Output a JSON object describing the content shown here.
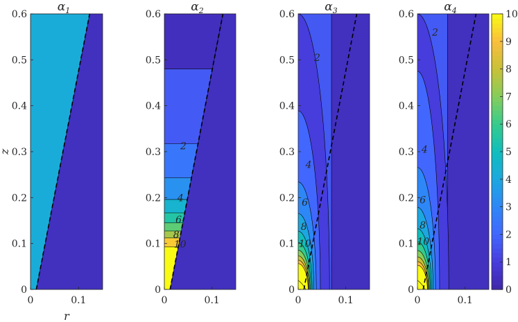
{
  "chart_data": {
    "type": "heatmap",
    "colormap": "parula",
    "panels": [
      {
        "title": "α₁",
        "title_base": "α",
        "title_sub": "1",
        "xlim": [
          0,
          0.15
        ],
        "ylim": [
          0,
          0.6
        ],
        "xticks": [
          "0",
          "0.1"
        ],
        "yticks": [
          "0",
          "0.1",
          "0.2",
          "0.3",
          "0.4",
          "0.5",
          "0.6"
        ],
        "xlabel": "r",
        "ylabel": "z",
        "interface": [
          [
            0.012,
            0
          ],
          [
            0.123,
            0.6
          ]
        ],
        "regions": [
          {
            "side": "left",
            "value": 4
          },
          {
            "side": "right",
            "value": 0
          }
        ],
        "contour_labels": []
      },
      {
        "title": "α₂",
        "title_base": "α",
        "title_sub": "2",
        "xlim": [
          0,
          0.15
        ],
        "ylim": [
          0,
          0.6
        ],
        "xticks": [
          "0",
          "0.1"
        ],
        "yticks": [
          "0",
          "0.1",
          "0.2",
          "0.3",
          "0.4",
          "0.5",
          "0.6"
        ],
        "interface": [
          [
            0.012,
            0
          ],
          [
            0.123,
            0.6
          ]
        ],
        "bands": [
          {
            "z0": 0,
            "z1": 0.093,
            "value": 10
          },
          {
            "z0": 0.093,
            "z1": 0.112,
            "value": 9.2
          },
          {
            "z0": 0.112,
            "z1": 0.127,
            "value": 7.5
          },
          {
            "z0": 0.127,
            "z1": 0.145,
            "value": 6.5
          },
          {
            "z0": 0.145,
            "z1": 0.167,
            "value": 5.5
          },
          {
            "z0": 0.167,
            "z1": 0.196,
            "value": 4.5
          },
          {
            "z0": 0.196,
            "z1": 0.243,
            "value": 3.3
          },
          {
            "z0": 0.243,
            "z1": 0.317,
            "value": 2.5
          },
          {
            "z0": 0.317,
            "z1": 0.48,
            "value": 1.7
          },
          {
            "z0": 0.48,
            "z1": 0.6,
            "value": 0.4
          }
        ],
        "contour_labels": [
          {
            "text": "2",
            "r": 0.04,
            "z": 0.313
          },
          {
            "text": "4",
            "r": 0.034,
            "z": 0.2
          },
          {
            "text": "6",
            "r": 0.03,
            "z": 0.152
          },
          {
            "text": "8",
            "r": 0.025,
            "z": 0.12
          },
          {
            "text": "10",
            "r": 0.033,
            "z": 0.099
          }
        ]
      },
      {
        "title": "α₃",
        "title_base": "α",
        "title_sub": "3",
        "xlim": [
          0,
          0.15
        ],
        "ylim": [
          0,
          0.6
        ],
        "xticks": [
          "0",
          "0.1"
        ],
        "yticks": [
          "0",
          "0.1",
          "0.2",
          "0.3",
          "0.4",
          "0.5",
          "0.6"
        ],
        "interface": [
          [
            0.012,
            0
          ],
          [
            0.123,
            0.6
          ]
        ],
        "contour_levels": [
          1,
          2,
          3,
          4,
          5,
          6,
          7,
          8,
          9,
          10
        ],
        "contour_labels": [
          {
            "text": "2",
            "r": 0.04,
            "z": 0.505
          },
          {
            "text": "4",
            "r": 0.022,
            "z": 0.272
          },
          {
            "text": "6",
            "r": 0.014,
            "z": 0.19
          },
          {
            "text": "8",
            "r": 0.012,
            "z": 0.137
          },
          {
            "text": "10",
            "r": 0.014,
            "z": 0.1
          }
        ]
      },
      {
        "title": "α₄",
        "title_base": "α",
        "title_sub": "4",
        "xlim": [
          0,
          0.15
        ],
        "ylim": [
          0,
          0.6
        ],
        "xticks": [
          "0",
          "0.1"
        ],
        "yticks": [
          "0",
          "0.1",
          "0.2",
          "0.3",
          "0.4",
          "0.5",
          "0.6"
        ],
        "interface": [
          [
            0.012,
            0
          ],
          [
            0.123,
            0.6
          ]
        ],
        "contour_levels": [
          1,
          2,
          3,
          4,
          5,
          6,
          7,
          8,
          9,
          10
        ],
        "contour_labels": [
          {
            "text": "2",
            "r": 0.037,
            "z": 0.56
          },
          {
            "text": "4",
            "r": 0.015,
            "z": 0.305
          },
          {
            "text": "6",
            "r": 0.011,
            "z": 0.195
          },
          {
            "text": "8",
            "r": 0.011,
            "z": 0.14
          },
          {
            "text": "10",
            "r": 0.012,
            "z": 0.105
          }
        ]
      }
    ],
    "colorbar": {
      "range": [
        0,
        10
      ],
      "ticks": [
        "0",
        "1",
        "2",
        "3",
        "4",
        "5",
        "6",
        "7",
        "8",
        "9",
        "10"
      ]
    }
  }
}
